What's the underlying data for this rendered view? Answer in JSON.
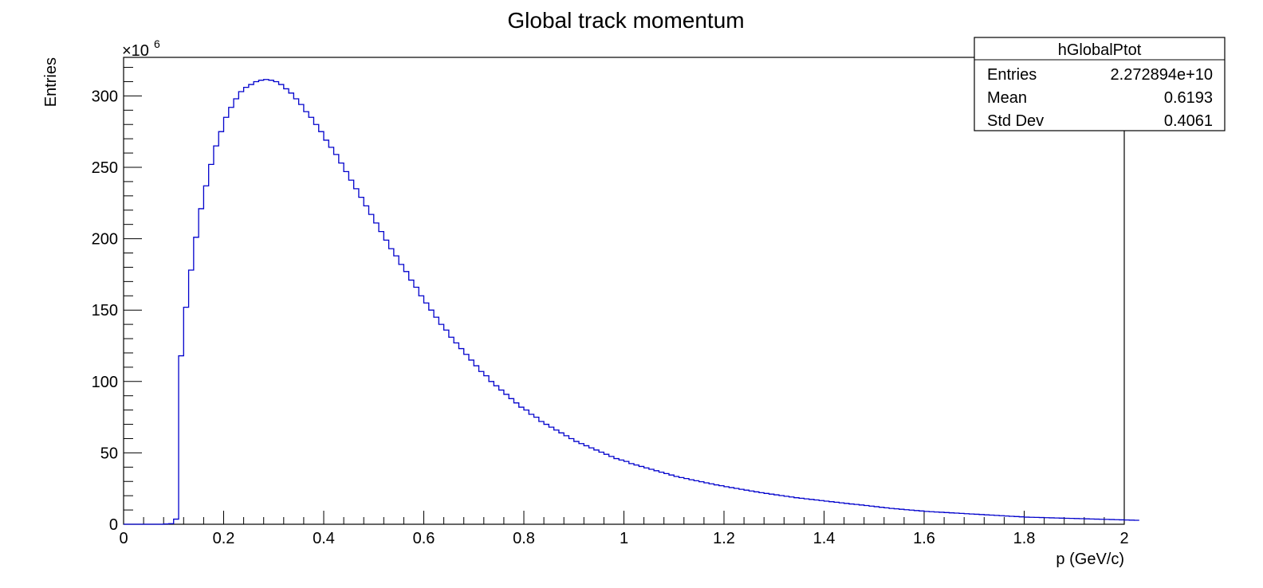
{
  "chart_data": {
    "type": "histogram",
    "title": "Global track momentum",
    "xlabel": "p (GeV/c)",
    "ylabel": "Entries",
    "xlim": [
      0,
      2
    ],
    "ylim": [
      0,
      327
    ],
    "y_multiplier_label": "×10",
    "y_multiplier_exp": "6",
    "x_ticks": [
      0,
      0.2,
      0.4,
      0.6,
      0.8,
      1,
      1.2,
      1.4,
      1.6,
      1.8,
      2
    ],
    "x_tick_labels": [
      "0",
      "0.2",
      "0.4",
      "0.6",
      "0.8",
      "1",
      "1.2",
      "1.4",
      "1.6",
      "1.8",
      "2"
    ],
    "y_ticks": [
      0,
      50,
      100,
      150,
      200,
      250,
      300
    ],
    "y_tick_labels": [
      "0",
      "50",
      "100",
      "150",
      "200",
      "250",
      "300"
    ],
    "bin_width": 0.01,
    "line_color": "#0000cc",
    "x_bin_edges_start": 0,
    "bin_values": [
      0,
      0,
      0,
      0,
      0,
      0,
      0,
      0,
      0.2,
      0.4,
      3.6,
      118,
      152,
      178,
      201,
      221,
      237,
      252,
      265,
      275,
      285,
      292,
      298,
      303,
      306,
      308,
      310,
      311,
      311.5,
      311,
      310,
      308,
      305,
      302,
      298,
      294,
      289,
      285,
      280,
      275,
      269,
      264,
      259,
      253,
      247,
      241,
      235,
      229,
      223,
      217,
      211,
      205,
      199,
      193,
      188,
      182,
      177,
      171,
      166,
      160,
      155,
      150,
      145,
      140,
      136,
      131,
      127,
      123,
      119,
      115,
      111,
      107,
      104,
      100,
      97,
      94,
      91,
      88,
      85,
      82,
      80,
      77,
      75,
      72,
      70,
      68,
      66,
      64,
      62,
      60,
      58,
      56.5,
      55,
      53.5,
      52,
      50.5,
      49,
      47.5,
      46,
      45,
      44,
      42.5,
      41.5,
      40.5,
      39.5,
      38.5,
      37.5,
      36.5,
      35.5,
      34.5,
      33.5,
      32.7,
      32,
      31.2,
      30.5,
      29.8,
      29,
      28.3,
      27.6,
      27,
      26.3,
      25.7,
      25.1,
      24.5,
      23.9,
      23.3,
      22.7,
      22.1,
      21.6,
      21.1,
      20.6,
      20.1,
      19.6,
      19.1,
      18.6,
      18.2,
      17.8,
      17.4,
      17,
      16.6,
      16.2,
      15.8,
      15.4,
      15,
      14.6,
      14.2,
      13.9,
      13.5,
      13.1,
      12.7,
      12.3,
      11.9,
      11.5,
      11.1,
      10.8,
      10.5,
      10.2,
      9.9,
      9.6,
      9.3,
      9,
      8.8,
      8.6,
      8.4,
      8.2,
      8,
      7.8,
      7.6,
      7.4,
      7.2,
      7,
      6.8,
      6.6,
      6.4,
      6.2,
      6,
      5.8,
      5.6,
      5.4,
      5.2,
      5,
      4.9,
      4.8,
      4.7,
      4.6,
      4.5,
      4.4,
      4.3,
      4.2,
      4.1,
      4,
      3.9,
      3.8,
      3.7,
      3.6,
      3.5,
      3.4,
      3.3,
      3.2,
      3.1,
      3.0,
      2.9,
      2.8
    ]
  },
  "stats_box": {
    "name": "hGlobalPtot",
    "rows": [
      {
        "label": "Entries",
        "value": "2.272894e+10"
      },
      {
        "label": "Mean",
        "value": "0.6193"
      },
      {
        "label": "Std Dev",
        "value": "0.4061"
      }
    ]
  }
}
